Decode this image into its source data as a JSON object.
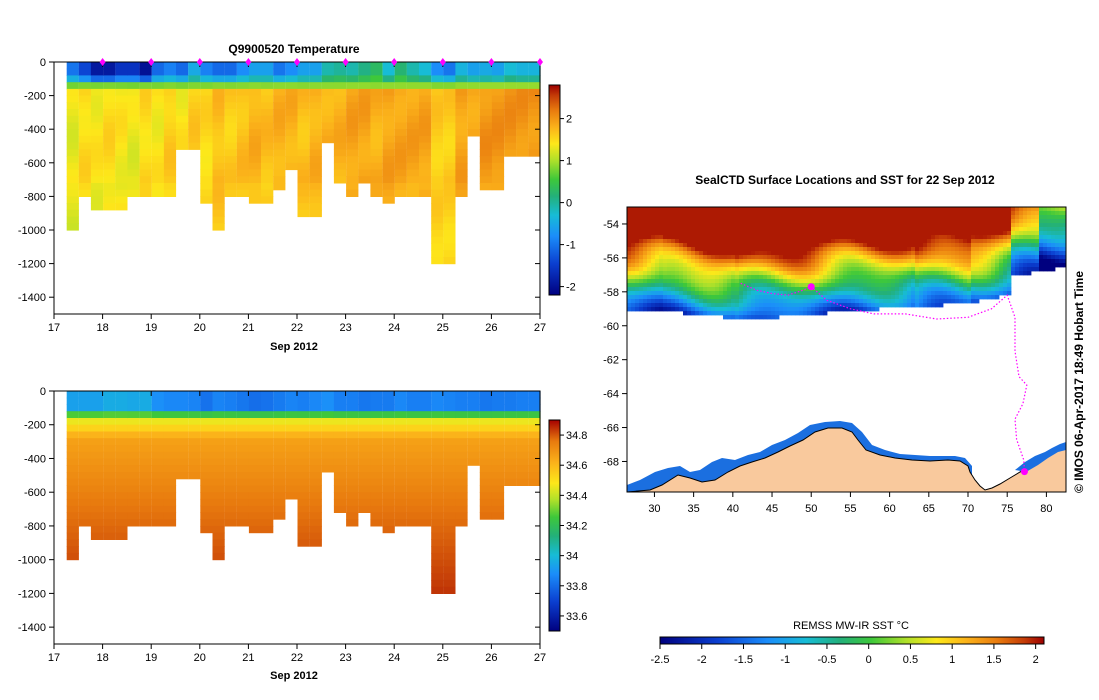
{
  "chart_data": [
    {
      "type": "heatmap",
      "title": "Q9900520  Temperature",
      "xlabel": "Sep 2012",
      "x_ticks": [
        "17",
        "18",
        "19",
        "20",
        "21",
        "22",
        "23",
        "24",
        "25",
        "26",
        "27"
      ],
      "y_ticks": [
        "0",
        "-200",
        "-400",
        "-600",
        "-800",
        "-1000",
        "-1200",
        "-1400"
      ],
      "xlim": [
        17,
        27
      ],
      "ylim": [
        -1500,
        0
      ],
      "colorbar_ticks": [
        "2",
        "1",
        "0",
        "-1",
        "-2"
      ],
      "colorbar_range": [
        -2.2,
        2.8
      ],
      "profile_times": [
        17.5,
        17.75,
        18,
        18.25,
        18.5,
        18.75,
        19,
        19.25,
        19.5,
        19.75,
        20,
        20.25,
        20.5,
        20.75,
        21,
        21.25,
        21.5,
        21.75,
        22,
        22.25,
        22.5,
        22.75,
        23,
        23.25,
        23.5,
        23.75,
        24,
        24.25,
        24.5,
        24.75,
        25,
        25.25,
        25.5,
        25.75,
        26,
        26.25,
        26.5,
        26.75,
        27
      ],
      "profile_max_depth": [
        1000,
        800,
        850,
        850,
        850,
        800,
        800,
        800,
        780,
        500,
        500,
        830,
        1000,
        800,
        780,
        840,
        840,
        750,
        620,
        910,
        910,
        460,
        700,
        800,
        700,
        780,
        820,
        800,
        770,
        800,
        1200,
        1200,
        780,
        420,
        760,
        760,
        560,
        560,
        560
      ],
      "surface_temp": [
        -1.0,
        -1.4,
        -1.9,
        -1.9,
        -1.6,
        -1.6,
        -2.0,
        -1.1,
        -0.9,
        -1.1,
        -0.5,
        -0.9,
        -1.1,
        -1.1,
        -0.8,
        -0.6,
        -0.6,
        -1.0,
        -0.8,
        -0.6,
        -0.6,
        -0.1,
        0.0,
        -0.1,
        0.1,
        0.3,
        -0.3,
        0.2,
        -0.1,
        -0.3,
        -0.8,
        -1.0,
        -0.4,
        -0.6,
        -0.5,
        -0.6,
        -0.3,
        -0.4,
        -0.4
      ],
      "deep_temp": [
        1.3,
        1.5,
        1.4,
        1.5,
        1.4,
        1.3,
        1.5,
        1.4,
        1.6,
        1.4,
        1.6,
        1.5,
        1.7,
        1.6,
        1.7,
        1.8,
        1.7,
        1.8,
        1.8,
        1.7,
        1.8,
        1.8,
        1.8,
        1.9,
        1.9,
        1.8,
        1.9,
        1.9,
        1.9,
        1.9,
        1.6,
        1.6,
        1.9,
        1.9,
        2.0,
        2.0,
        2.0,
        2.0,
        2.0
      ],
      "markers_at_x": [
        18,
        19,
        20,
        21,
        22,
        23,
        24,
        25,
        26,
        27
      ]
    },
    {
      "type": "heatmap",
      "title": "",
      "xlabel": "Sep 2012",
      "x_ticks": [
        "17",
        "18",
        "19",
        "20",
        "21",
        "22",
        "23",
        "24",
        "25",
        "26",
        "27"
      ],
      "y_ticks": [
        "0",
        "-200",
        "-400",
        "-600",
        "-800",
        "-1000",
        "-1200",
        "-1400"
      ],
      "xlim": [
        17,
        27
      ],
      "ylim": [
        -1500,
        0
      ],
      "colorbar_ticks": [
        "34.8",
        "34.6",
        "34.4",
        "34.2",
        "34",
        "33.8",
        "33.6"
      ],
      "colorbar_range": [
        33.5,
        34.9
      ],
      "surface_salinity": [
        33.95,
        33.95,
        33.95,
        33.98,
        33.98,
        33.97,
        33.98,
        33.9,
        33.88,
        33.88,
        33.87,
        33.83,
        33.87,
        33.86,
        33.84,
        33.82,
        33.83,
        33.85,
        33.87,
        33.86,
        33.88,
        33.9,
        33.86,
        33.86,
        33.84,
        33.85,
        33.85,
        33.88,
        33.86,
        33.86,
        33.88,
        33.87,
        33.86,
        33.86,
        33.84,
        33.85,
        33.85,
        33.86,
        33.86
      ],
      "deep_salinity": 34.72
    },
    {
      "type": "heatmap",
      "title": "SealCTD Surface Locations and SST for 22 Sep 2012",
      "x_ticks": [
        "30",
        "35",
        "40",
        "45",
        "50",
        "55",
        "60",
        "65",
        "70",
        "75",
        "80"
      ],
      "y_ticks": [
        "-54",
        "-56",
        "-58",
        "-60",
        "-62",
        "-64",
        "-66",
        "-68"
      ],
      "xlim": [
        26.5,
        82.5
      ],
      "ylim": [
        -69.8,
        -53.0
      ],
      "colorbar_label": "REMSS MW-IR SST °C",
      "colorbar_ticks": [
        "-2.5",
        "-2",
        "-1.5",
        "-1",
        "-0.5",
        "0",
        "0.5",
        "1",
        "1.5",
        "2"
      ],
      "colorbar_range": [
        -2.5,
        2.1
      ],
      "seal_track": [
        [
          41,
          -57.5
        ],
        [
          43,
          -57.9
        ],
        [
          45,
          -58.1
        ],
        [
          47,
          -58.2
        ],
        [
          49,
          -57.9
        ],
        [
          50,
          -57.7
        ],
        [
          52,
          -58.5
        ],
        [
          55,
          -59.0
        ],
        [
          58,
          -59.3
        ],
        [
          62,
          -59.3
        ],
        [
          66,
          -59.6
        ],
        [
          70,
          -59.5
        ],
        [
          73,
          -59.0
        ],
        [
          75,
          -58.2
        ],
        [
          76,
          -59.5
        ],
        [
          76,
          -61.5
        ],
        [
          76.5,
          -63.0
        ],
        [
          77.5,
          -63.5
        ],
        [
          77,
          -64.6
        ],
        [
          76,
          -65.5
        ],
        [
          76.2,
          -66.7
        ],
        [
          77.1,
          -67.9
        ],
        [
          77.2,
          -68.6
        ]
      ],
      "highlight_points": [
        [
          50,
          -57.7
        ],
        [
          77.2,
          -68.6
        ]
      ]
    }
  ],
  "side_text": "© IMOS 06-Apr-2017 18:49 Hobart Time",
  "colors": {
    "ice": "#ffffff",
    "land": "#f9c99d",
    "marker": "#ff00ff"
  }
}
